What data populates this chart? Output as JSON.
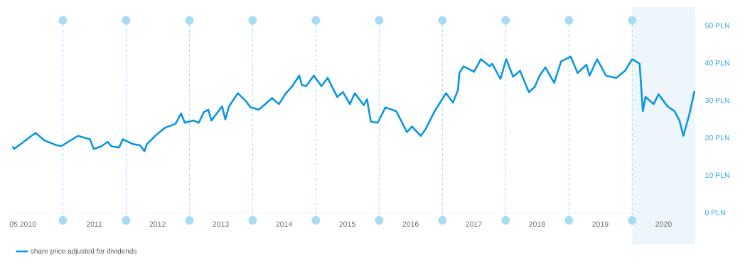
{
  "chart_data": {
    "type": "line",
    "x": [
      "2010-03-18",
      "2010-03-25",
      "2010-05-19",
      "2010-07-27",
      "2010-09-16",
      "2010-11-25",
      "2010-12-24",
      "2011-03-29",
      "2011-06-06",
      "2011-06-28",
      "2011-08-11",
      "2011-09-16",
      "2011-10-08",
      "2011-11-21",
      "2011-12-13",
      "2012-02-09",
      "2012-03-21",
      "2012-04-16",
      "2012-04-30",
      "2012-06-24",
      "2012-08-14",
      "2012-10-12",
      "2012-11-14",
      "2012-12-05",
      "2013-01-26",
      "2013-02-24",
      "2013-03-25",
      "2013-04-20",
      "2013-05-08",
      "2013-07-09",
      "2013-07-27",
      "2013-08-18",
      "2013-10-08",
      "2013-11-25",
      "2013-12-20",
      "2014-02-06",
      "2014-04-23",
      "2014-06-02",
      "2014-07-12",
      "2014-08-18",
      "2014-09-27",
      "2014-10-12",
      "2014-11-06",
      "2014-12-20",
      "2015-02-02",
      "2015-03-10",
      "2015-05-04",
      "2015-06-06",
      "2015-07-16",
      "2015-08-14",
      "2015-10-04",
      "2015-10-23",
      "2015-11-14",
      "2015-12-24",
      "2016-02-06",
      "2016-04-09",
      "2016-06-10",
      "2016-07-09",
      "2016-08-29",
      "2016-09-27",
      "2016-11-17",
      "2017-01-22",
      "2017-03-03",
      "2017-04-01",
      "2017-04-09",
      "2017-05-04",
      "2017-07-02",
      "2017-08-11",
      "2017-10-01",
      "2017-10-15",
      "2017-12-02",
      "2018-01-04",
      "2018-02-13",
      "2018-03-25",
      "2018-05-15",
      "2018-06-17",
      "2018-07-16",
      "2018-08-18",
      "2018-10-08",
      "2018-11-17",
      "2019-01-11",
      "2019-02-20",
      "2019-04-12",
      "2019-04-30",
      "2019-06-13",
      "2019-08-03",
      "2019-10-01",
      "2019-11-21",
      "2020-01-01",
      "2020-02-13",
      "2020-03-03",
      "2020-03-18",
      "2020-05-04",
      "2020-06-02",
      "2020-07-23",
      "2020-09-02",
      "2020-10-01",
      "2020-10-23",
      "2020-11-25",
      "2020-12-27"
    ],
    "series": [
      {
        "name": "share price adjusted for dividends",
        "color": "#0a96e0",
        "values": [
          17.7,
          17.0,
          18.9,
          21.3,
          19.3,
          18.0,
          17.8,
          20.5,
          19.6,
          17.0,
          17.7,
          18.9,
          17.7,
          17.4,
          19.6,
          18.3,
          18.0,
          16.4,
          18.3,
          20.8,
          22.7,
          23.7,
          26.5,
          24.0,
          24.6,
          24.0,
          26.8,
          27.5,
          24.6,
          28.4,
          24.9,
          28.4,
          31.9,
          29.7,
          28.1,
          27.5,
          30.6,
          29.0,
          31.9,
          33.8,
          36.6,
          34.1,
          33.8,
          36.6,
          33.8,
          36.0,
          30.9,
          32.2,
          29.0,
          31.9,
          28.7,
          30.3,
          24.3,
          24.0,
          28.1,
          27.1,
          21.5,
          23.0,
          20.5,
          22.4,
          27.1,
          31.9,
          29.4,
          32.8,
          37.3,
          39.1,
          37.6,
          41.0,
          39.1,
          39.8,
          35.7,
          41.0,
          36.3,
          37.9,
          32.2,
          33.5,
          36.6,
          38.8,
          34.7,
          40.4,
          41.7,
          37.3,
          39.5,
          36.6,
          41.0,
          36.6,
          36.0,
          37.9,
          41.0,
          39.8,
          27.1,
          30.9,
          29.0,
          31.6,
          28.4,
          27.1,
          24.6,
          20.5,
          25.9,
          32.5
        ]
      }
    ],
    "xticks": [
      {
        "value": "2010-05-15",
        "label": "05.2010"
      },
      {
        "value": "2011-07-01",
        "label": "2011"
      },
      {
        "value": "2012-07-01",
        "label": "2012"
      },
      {
        "value": "2013-07-01",
        "label": "2013"
      },
      {
        "value": "2014-07-01",
        "label": "2014"
      },
      {
        "value": "2015-07-01",
        "label": "2015"
      },
      {
        "value": "2016-07-01",
        "label": "2016"
      },
      {
        "value": "2017-07-01",
        "label": "2017"
      },
      {
        "value": "2018-07-01",
        "label": "2018"
      },
      {
        "value": "2019-07-01",
        "label": "2019"
      },
      {
        "value": "2020-07-01",
        "label": "2020"
      }
    ],
    "xlim": [
      "2010-03-18",
      "2020-12-31"
    ],
    "ylim": [
      0,
      50
    ],
    "yticks": [
      {
        "value": 0,
        "label": "0 PLN"
      },
      {
        "value": 10,
        "label": "10 PLN"
      },
      {
        "value": 20,
        "label": "20 PLN"
      },
      {
        "value": 30,
        "label": "30 PLN"
      },
      {
        "value": 40,
        "label": "40 PLN"
      },
      {
        "value": 50,
        "label": "50 PLN"
      }
    ],
    "ref_lines": [
      {
        "axis": "x",
        "value": "2011-01-01",
        "color": "#a8dcf2",
        "line_style": "dashed"
      },
      {
        "axis": "x",
        "value": "2012-01-01",
        "color": "#a8dcf2",
        "line_style": "dashed"
      },
      {
        "axis": "x",
        "value": "2013-01-01",
        "color": "#a8dcf2",
        "line_style": "dashed"
      },
      {
        "axis": "x",
        "value": "2014-01-01",
        "color": "#a8dcf2",
        "line_style": "dashed"
      },
      {
        "axis": "x",
        "value": "2015-01-01",
        "color": "#a8dcf2",
        "line_style": "dashed"
      },
      {
        "axis": "x",
        "value": "2016-01-01",
        "color": "#a8dcf2",
        "line_style": "dashed"
      },
      {
        "axis": "x",
        "value": "2017-01-01",
        "color": "#a8dcf2",
        "line_style": "dashed"
      },
      {
        "axis": "x",
        "value": "2018-01-01",
        "color": "#a8dcf2",
        "line_style": "dashed"
      },
      {
        "axis": "x",
        "value": "2019-01-01",
        "color": "#a8dcf2",
        "line_style": "dashed"
      },
      {
        "axis": "x",
        "value": "2020-01-01",
        "color": "#a8dcf2",
        "line_style": "dashed"
      }
    ],
    "bands": [
      {
        "axis": "x",
        "from": "2020-01-01",
        "to": "2020-12-31",
        "color": "#eef6fb"
      }
    ],
    "legend": "bottom left"
  }
}
